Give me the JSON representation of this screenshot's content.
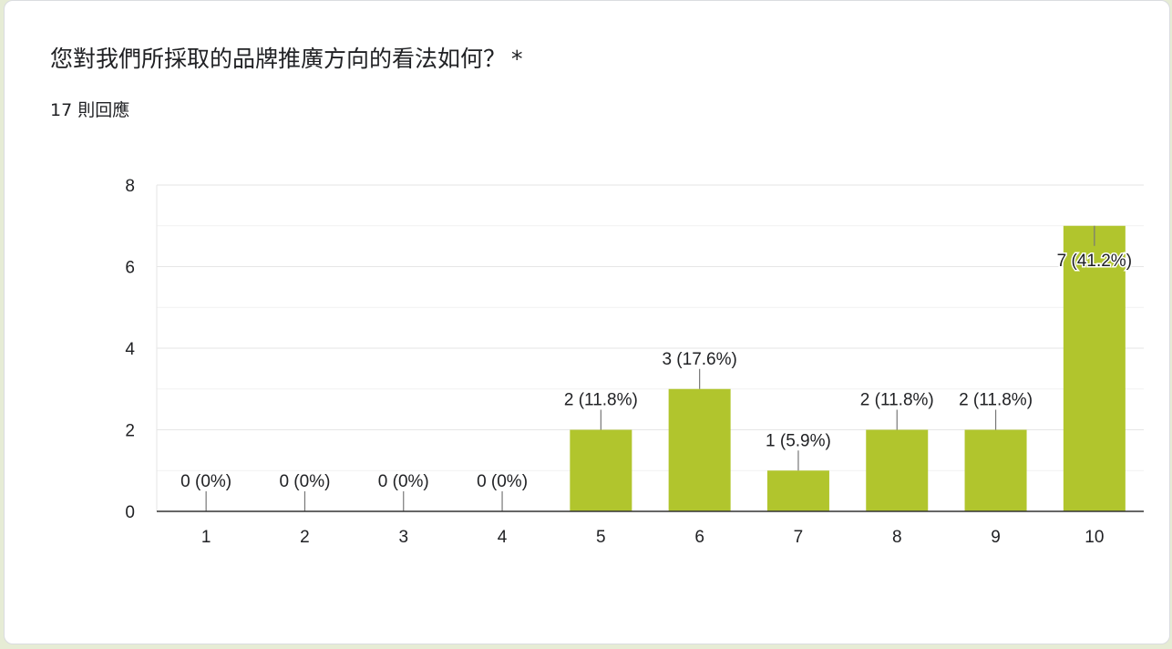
{
  "question": {
    "title": "您對我們所採取的品牌推廣方向的看法如何？",
    "required_mark": "*",
    "response_count": "17 則回應"
  },
  "colors": {
    "bar": "#b1c52d",
    "grid": "#e6e6e6",
    "axis": "#333333",
    "text": "#202124"
  },
  "chart_data": {
    "type": "bar",
    "categories": [
      "1",
      "2",
      "3",
      "4",
      "5",
      "6",
      "7",
      "8",
      "9",
      "10"
    ],
    "values": [
      0,
      0,
      0,
      0,
      2,
      3,
      1,
      2,
      2,
      7
    ],
    "data_labels": [
      "0 (0%)",
      "0 (0%)",
      "0 (0%)",
      "0 (0%)",
      "2 (11.8%)",
      "3 (17.6%)",
      "1 (5.9%)",
      "2 (11.8%)",
      "2 (11.8%)",
      "7 (41.2%)"
    ],
    "y_ticks": [
      "0",
      "2",
      "4",
      "6",
      "8"
    ],
    "ylim": [
      0,
      8
    ],
    "grid": true,
    "title": "",
    "xlabel": "",
    "ylabel": ""
  }
}
